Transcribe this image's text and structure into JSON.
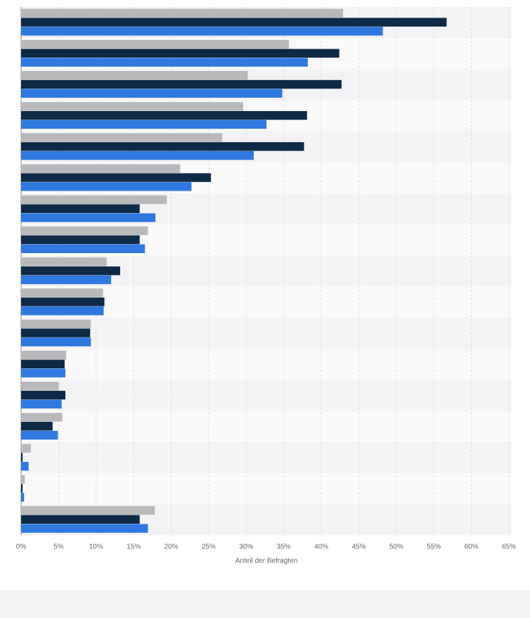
{
  "chart_data": {
    "type": "bar",
    "orientation": "horizontal",
    "xlabel": "Anteil der Befragten",
    "xlim": [
      0,
      65
    ],
    "x_ticks": [
      "0%",
      "5%",
      "10%",
      "15%",
      "20%",
      "25%",
      "30%",
      "35%",
      "40%",
      "45%",
      "50%",
      "55%",
      "60%",
      "65%"
    ],
    "grid": true,
    "categories": [
      "",
      "",
      "",
      "",
      "",
      "",
      "",
      "",
      "",
      "",
      "",
      "",
      "",
      "",
      "",
      "",
      ""
    ],
    "series": [
      {
        "color": "#b9b9bb",
        "values": [
          42.9,
          35.7,
          30.2,
          29.6,
          26.8,
          21.2,
          19.4,
          16.9,
          11.4,
          10.9,
          9.3,
          6.0,
          5.0,
          5.5,
          1.3,
          0.5,
          17.8
        ]
      },
      {
        "color": "#0f2a47",
        "values": [
          56.7,
          42.4,
          42.7,
          38.1,
          37.7,
          25.3,
          15.8,
          15.8,
          13.2,
          11.1,
          9.2,
          5.8,
          5.9,
          4.2,
          0.2,
          0.2,
          15.8
        ]
      },
      {
        "color": "#2f78df",
        "values": [
          48.2,
          38.2,
          34.8,
          32.7,
          31.0,
          22.7,
          17.9,
          16.5,
          12.0,
          11.0,
          9.3,
          5.9,
          5.4,
          4.9,
          1.0,
          0.4,
          16.9
        ]
      }
    ]
  }
}
